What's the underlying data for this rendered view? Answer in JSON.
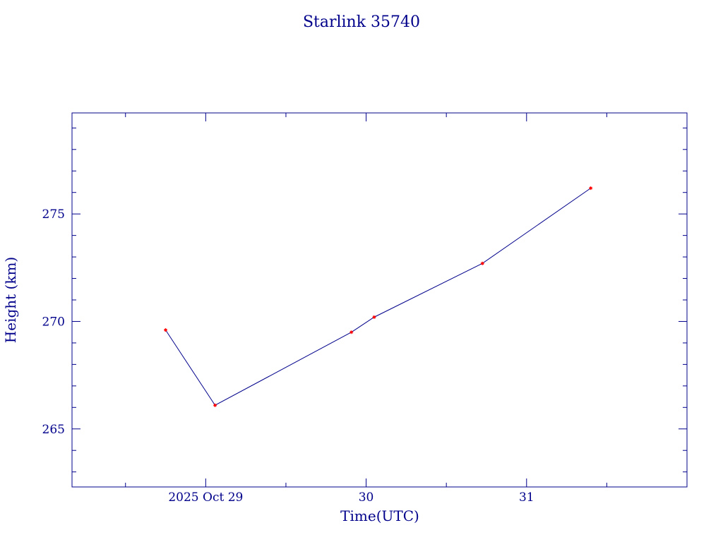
{
  "chart_data": {
    "type": "line",
    "title": "Starlink 35740",
    "xlabel": "Time(UTC)",
    "ylabel": "Height (km)",
    "x_tick_labels": [
      "2025 Oct 29",
      "30",
      "31"
    ],
    "x_tick_values": [
      "2025-10-29",
      "2025-10-30",
      "2025-10-31"
    ],
    "y_tick_labels": [
      "265",
      "270",
      "275"
    ],
    "y_ticks": [
      265,
      270,
      275
    ],
    "xlim": [
      "2025-10-28T04:00:00Z",
      "2025-11-01T00:00:00Z"
    ],
    "ylim": [
      262.3,
      279.7
    ],
    "grid": false,
    "series": [
      {
        "x": [
          "2025-10-28T18:00:00Z",
          "2025-10-29T01:24:00Z",
          "2025-10-29T21:48:00Z",
          "2025-10-30T01:12:00Z",
          "2025-10-30T17:24:00Z",
          "2025-10-31T09:36:00Z"
        ],
        "y": [
          269.6,
          266.1,
          269.5,
          270.2,
          272.7,
          276.2
        ]
      }
    ],
    "colors": {
      "axis": "#00008b",
      "line": "#00008b",
      "marker": "#ff0000"
    }
  }
}
